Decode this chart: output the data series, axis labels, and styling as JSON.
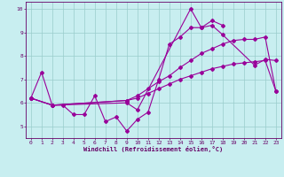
{
  "xlabel": "Windchill (Refroidissement éolien,°C)",
  "xlim": [
    -0.5,
    23.5
  ],
  "ylim": [
    4.5,
    10.3
  ],
  "yticks": [
    5,
    6,
    7,
    8,
    9,
    10
  ],
  "xticks": [
    0,
    1,
    2,
    3,
    4,
    5,
    6,
    7,
    8,
    9,
    10,
    11,
    12,
    13,
    14,
    15,
    16,
    17,
    18,
    19,
    20,
    21,
    22,
    23
  ],
  "bg_color": "#c8eef0",
  "line_color": "#990099",
  "grid_color": "#99cccc",
  "line1_x": [
    0,
    1,
    2,
    3,
    4,
    5,
    6,
    7,
    8,
    9,
    10,
    11,
    12,
    13,
    14,
    15,
    16,
    17,
    18
  ],
  "line1_y": [
    6.2,
    7.3,
    5.9,
    5.9,
    5.5,
    5.5,
    6.3,
    5.2,
    5.4,
    4.8,
    5.3,
    5.6,
    7.0,
    8.5,
    8.8,
    9.2,
    9.2,
    9.5,
    9.3
  ],
  "line2_x": [
    0,
    2,
    9,
    10,
    11,
    12,
    13,
    14,
    15,
    16,
    17,
    18,
    19,
    20,
    21,
    22,
    23
  ],
  "line2_y": [
    6.2,
    5.9,
    6.1,
    6.2,
    6.4,
    6.6,
    6.8,
    7.0,
    7.15,
    7.3,
    7.45,
    7.55,
    7.65,
    7.7,
    7.75,
    7.8,
    6.5
  ],
  "line3_x": [
    0,
    2,
    9,
    10,
    11,
    12,
    13,
    14,
    15,
    16,
    17,
    18,
    19,
    20,
    21,
    22,
    23
  ],
  "line3_y": [
    6.2,
    5.9,
    6.1,
    6.3,
    6.6,
    6.9,
    7.15,
    7.5,
    7.8,
    8.1,
    8.3,
    8.5,
    8.65,
    8.7,
    8.7,
    8.8,
    6.5
  ],
  "line4_x": [
    0,
    2,
    9,
    10,
    15,
    16,
    17,
    18,
    21,
    22,
    23
  ],
  "line4_y": [
    6.2,
    5.9,
    6.0,
    5.7,
    10.0,
    9.2,
    9.3,
    8.9,
    7.6,
    7.85,
    7.8
  ]
}
